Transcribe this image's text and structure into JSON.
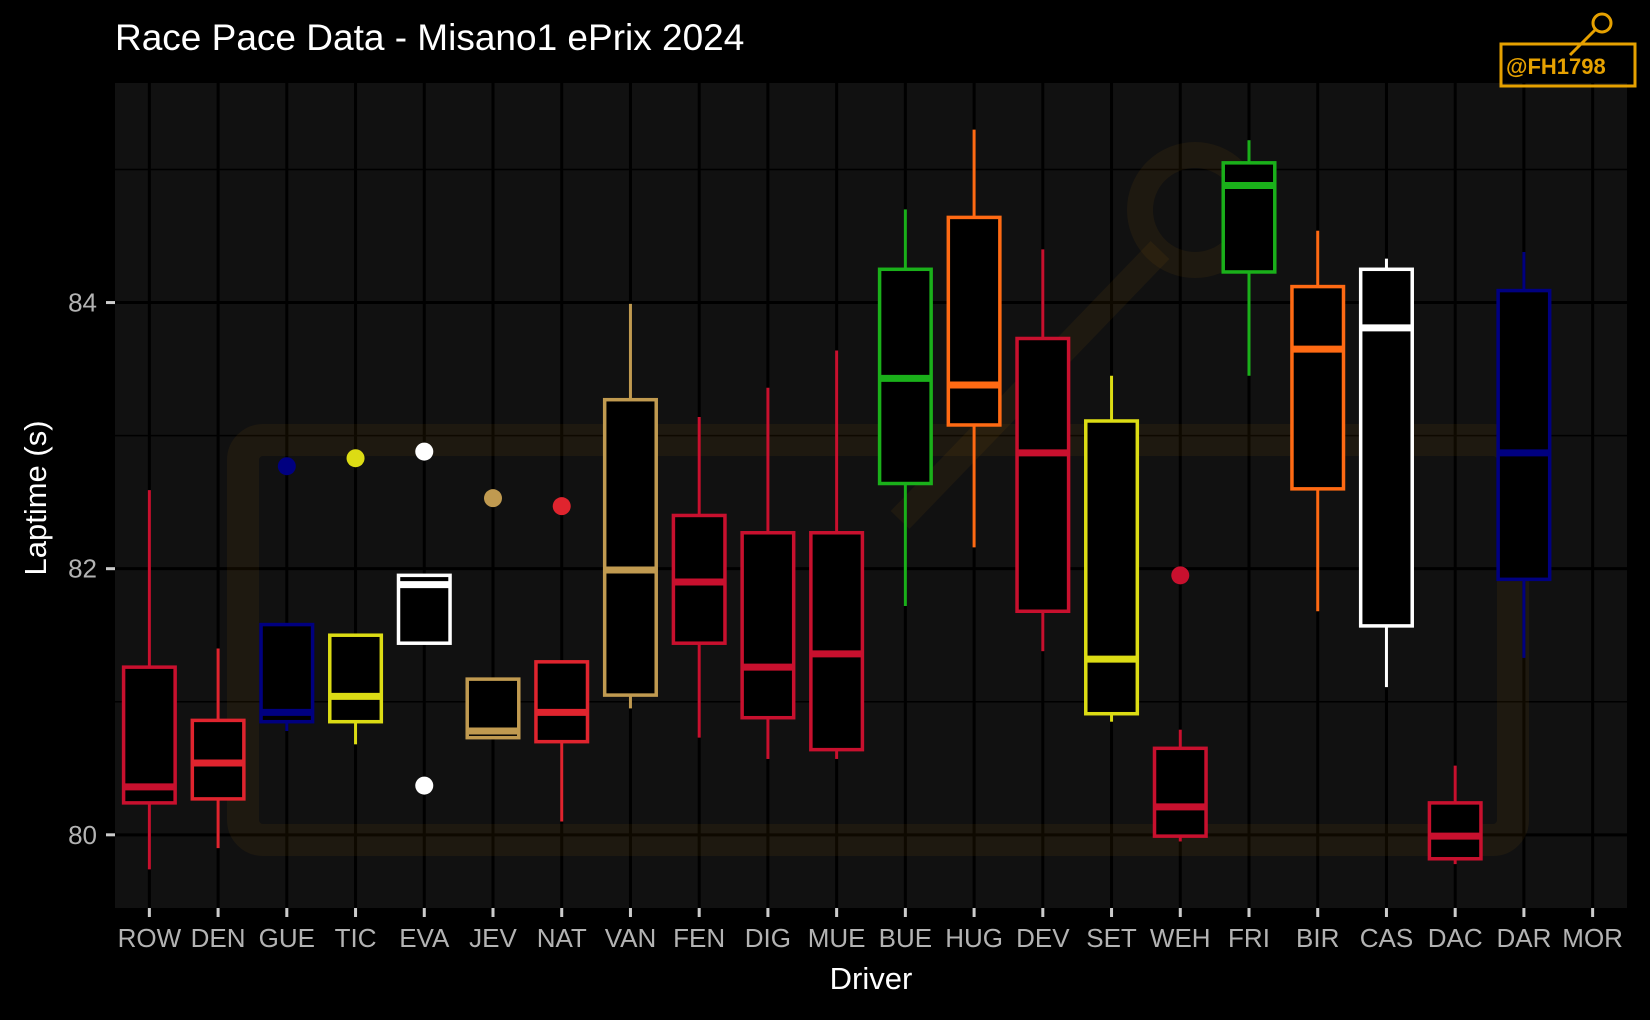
{
  "chart_data": {
    "type": "box",
    "title": "Race Pace Data - Misano1 ePrix 2024",
    "xlabel": "Driver",
    "ylabel": "Laptime (s)",
    "ylim": [
      79.45,
      85.65
    ],
    "yticks": [
      80,
      82,
      84
    ],
    "grid": true,
    "background": "#111111",
    "categories": [
      "ROW",
      "DEN",
      "GUE",
      "TIC",
      "EVA",
      "JEV",
      "NAT",
      "VAN",
      "FEN",
      "DIG",
      "MUE",
      "BUE",
      "HUG",
      "DEV",
      "SET",
      "WEH",
      "FRI",
      "BIR",
      "CAS",
      "DAC",
      "DAR",
      "MOR"
    ],
    "boxes": [
      {
        "driver": "ROW",
        "color": "#c8102e",
        "whisker_low": 79.74,
        "q1": 80.24,
        "median": 80.36,
        "q3": 81.26,
        "whisker_high": 82.59,
        "outliers": []
      },
      {
        "driver": "DEN",
        "color": "#e0242e",
        "whisker_low": 79.9,
        "q1": 80.27,
        "median": 80.54,
        "q3": 80.86,
        "whisker_high": 81.4,
        "outliers": []
      },
      {
        "driver": "GUE",
        "color": "#000080",
        "whisker_low": 80.78,
        "q1": 80.85,
        "median": 80.92,
        "q3": 81.58,
        "whisker_high": 81.58,
        "outliers": [
          82.77
        ]
      },
      {
        "driver": "TIC",
        "color": "#dcdc14",
        "whisker_low": 80.68,
        "q1": 80.85,
        "median": 81.04,
        "q3": 81.5,
        "whisker_high": 81.5,
        "outliers": [
          82.83
        ]
      },
      {
        "driver": "EVA",
        "color": "#ffffff",
        "whisker_low": 81.44,
        "q1": 81.44,
        "median": 81.88,
        "q3": 81.95,
        "whisker_high": 81.95,
        "outliers": [
          82.88,
          80.37
        ]
      },
      {
        "driver": "JEV",
        "color": "#c09a50",
        "whisker_low": 80.73,
        "q1": 80.73,
        "median": 80.78,
        "q3": 81.17,
        "whisker_high": 81.17,
        "outliers": [
          82.53
        ]
      },
      {
        "driver": "NAT",
        "color": "#e0242e",
        "whisker_low": 80.1,
        "q1": 80.7,
        "median": 80.92,
        "q3": 81.3,
        "whisker_high": 81.3,
        "outliers": [
          82.47
        ]
      },
      {
        "driver": "VAN",
        "color": "#c09a50",
        "whisker_low": 80.95,
        "q1": 81.05,
        "median": 81.99,
        "q3": 83.27,
        "whisker_high": 83.99,
        "outliers": []
      },
      {
        "driver": "FEN",
        "color": "#c8102e",
        "whisker_low": 80.73,
        "q1": 81.44,
        "median": 81.9,
        "q3": 82.4,
        "whisker_high": 83.14,
        "outliers": []
      },
      {
        "driver": "DIG",
        "color": "#c8102e",
        "whisker_low": 80.57,
        "q1": 80.88,
        "median": 81.26,
        "q3": 82.27,
        "whisker_high": 83.36,
        "outliers": []
      },
      {
        "driver": "MUE",
        "color": "#c8102e",
        "whisker_low": 80.57,
        "q1": 80.64,
        "median": 81.36,
        "q3": 82.27,
        "whisker_high": 83.64,
        "outliers": []
      },
      {
        "driver": "BUE",
        "color": "#1ab01a",
        "whisker_low": 81.72,
        "q1": 82.64,
        "median": 83.43,
        "q3": 84.25,
        "whisker_high": 84.7,
        "outliers": []
      },
      {
        "driver": "HUG",
        "color": "#ff6a13",
        "whisker_low": 82.16,
        "q1": 83.08,
        "median": 83.38,
        "q3": 84.64,
        "whisker_high": 85.3,
        "outliers": []
      },
      {
        "driver": "DEV",
        "color": "#c8102e",
        "whisker_low": 81.38,
        "q1": 81.68,
        "median": 82.87,
        "q3": 83.73,
        "whisker_high": 84.4,
        "outliers": []
      },
      {
        "driver": "SET",
        "color": "#dcdc14",
        "whisker_low": 80.85,
        "q1": 80.91,
        "median": 81.32,
        "q3": 83.11,
        "whisker_high": 83.45,
        "outliers": []
      },
      {
        "driver": "WEH",
        "color": "#c8102e",
        "whisker_low": 79.95,
        "q1": 79.99,
        "median": 80.21,
        "q3": 80.65,
        "whisker_high": 80.79,
        "outliers": [
          81.95
        ]
      },
      {
        "driver": "FRI",
        "color": "#1ab01a",
        "whisker_low": 83.45,
        "q1": 84.23,
        "median": 84.88,
        "q3": 85.05,
        "whisker_high": 85.22,
        "outliers": []
      },
      {
        "driver": "BIR",
        "color": "#ff6a13",
        "whisker_low": 81.68,
        "q1": 82.6,
        "median": 83.65,
        "q3": 84.12,
        "whisker_high": 84.54,
        "outliers": []
      },
      {
        "driver": "CAS",
        "color": "#ffffff",
        "whisker_low": 81.11,
        "q1": 81.57,
        "median": 83.81,
        "q3": 84.25,
        "whisker_high": 84.33,
        "outliers": []
      },
      {
        "driver": "DAC",
        "color": "#c8102e",
        "whisker_low": 79.78,
        "q1": 79.82,
        "median": 79.99,
        "q3": 80.24,
        "whisker_high": 80.52,
        "outliers": []
      },
      {
        "driver": "DAR",
        "color": "#000080",
        "whisker_low": 81.33,
        "q1": 81.92,
        "median": 82.87,
        "q3": 84.09,
        "whisker_high": 84.38,
        "outliers": []
      }
    ]
  },
  "watermark": {
    "label": "@FH1798",
    "color": "#e6a100"
  }
}
